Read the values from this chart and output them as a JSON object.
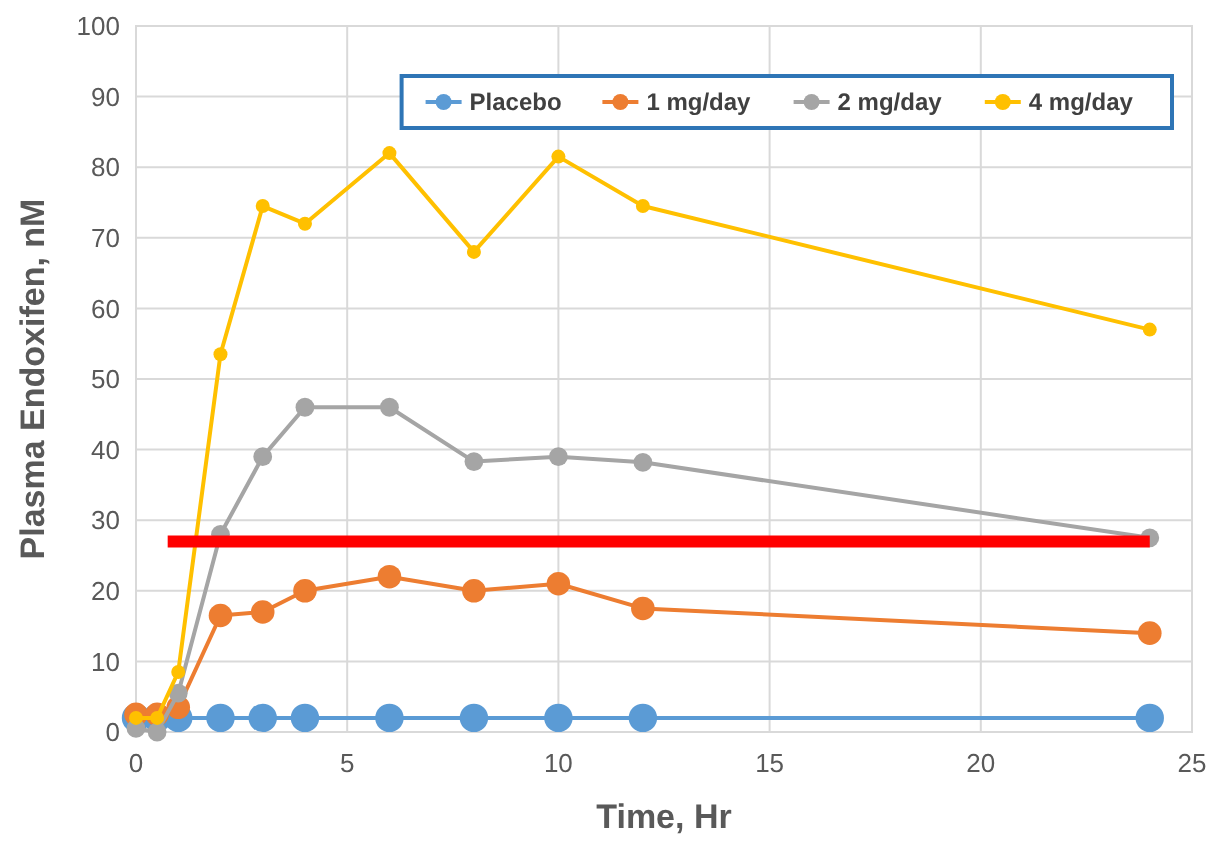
{
  "chart_data": {
    "type": "line",
    "xlabel": "Time, Hr",
    "ylabel": "Plasma Endoxifen, nM",
    "x": [
      0,
      0.5,
      1,
      2,
      3,
      4,
      6,
      8,
      10,
      12,
      24
    ],
    "series": [
      {
        "name": "Placebo",
        "color": "#5b9bd5",
        "values": [
          2,
          2,
          2,
          2,
          2,
          2,
          2,
          2,
          2,
          2,
          2
        ]
      },
      {
        "name": "1 mg/day",
        "color": "#ed7d31",
        "values": [
          2.5,
          2.5,
          3.5,
          16.5,
          17,
          20,
          22,
          20,
          21,
          17.5,
          14
        ]
      },
      {
        "name": "2 mg/day",
        "color": "#a5a5a5",
        "values": [
          0.5,
          0,
          5.5,
          28,
          39,
          46,
          46,
          38.3,
          39,
          38.2,
          27.5
        ]
      },
      {
        "name": "4 mg/day",
        "color": "#ffc000",
        "values": [
          2,
          2,
          8.5,
          53.5,
          74.5,
          72,
          82,
          68,
          81.5,
          74.5,
          57
        ]
      }
    ],
    "xlim": [
      0,
      25
    ],
    "xticks": [
      0,
      5,
      10,
      15,
      20,
      25
    ],
    "ylim": [
      0,
      100
    ],
    "yticks": [
      0,
      10,
      20,
      30,
      40,
      50,
      60,
      70,
      80,
      90,
      100
    ],
    "ref_lines": [
      {
        "axis": "y",
        "value": 27,
        "color": "#ff0000"
      }
    ],
    "grid": true,
    "legend": "top right",
    "marker": "circle",
    "line_style": "solid"
  }
}
